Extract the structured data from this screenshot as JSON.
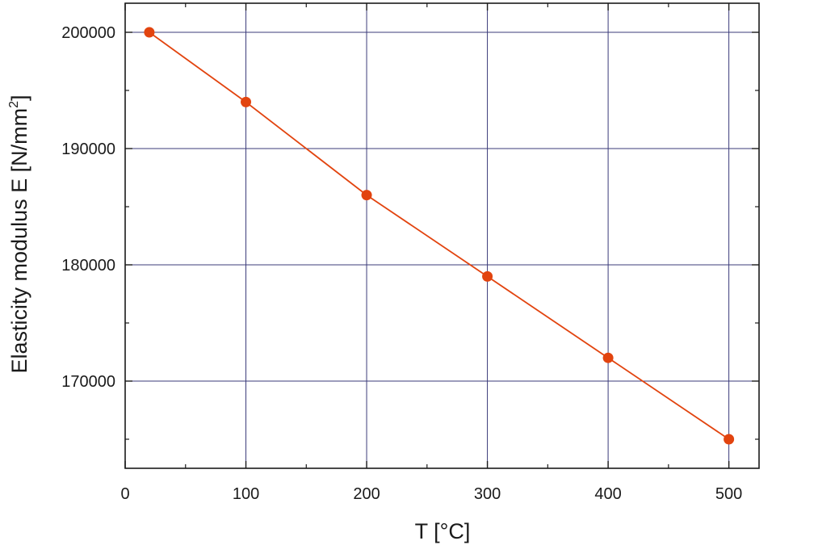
{
  "chart_data": {
    "type": "line",
    "title": "",
    "xlabel": "T [°C]",
    "ylabel_main": "Elasticity modulus E [N/mm",
    "ylabel_sup": "2",
    "ylabel_end": "]",
    "xlim": [
      0,
      525
    ],
    "ylim": [
      162500,
      202500
    ],
    "x_ticks": [
      0,
      100,
      200,
      300,
      400,
      500
    ],
    "x_minor_ticks": [
      50,
      150,
      250,
      350,
      450
    ],
    "x_tick_labels": [
      "0",
      "100",
      "200",
      "300",
      "400",
      "500"
    ],
    "y_ticks": [
      170000,
      180000,
      190000,
      200000
    ],
    "y_minor_ticks": [
      165000,
      175000,
      185000,
      195000
    ],
    "y_tick_labels": [
      "170000",
      "180000",
      "190000",
      "200000"
    ],
    "grid": true,
    "legend": "none",
    "series": [
      {
        "x": [
          20,
          100,
          200,
          300,
          400,
          500
        ],
        "y": [
          200000,
          194000,
          186000,
          179000,
          172000,
          165000
        ],
        "color": "#e2440f",
        "marker": "circle"
      }
    ],
    "colors": {
      "grid": "#3b3b7a",
      "axis": "#1a1a1a",
      "series": "#e2440f"
    }
  }
}
